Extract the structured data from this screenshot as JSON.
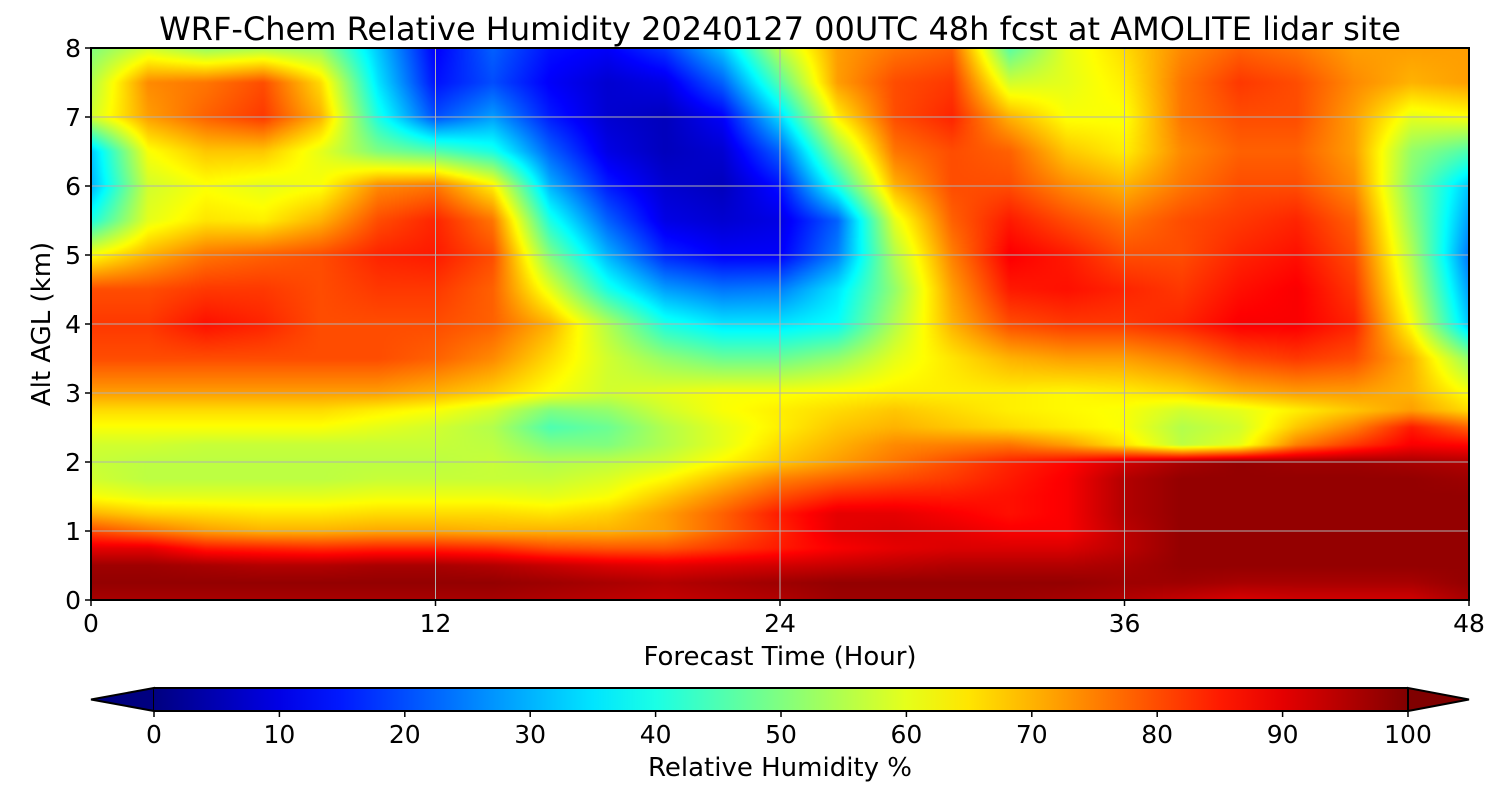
{
  "chart_data": {
    "type": "heatmap",
    "title": "WRF-Chem Relative Humidity 20240127 00UTC 48h fcst at AMOLITE lidar site",
    "xlabel": "Forecast Time (Hour)",
    "ylabel": "Alt AGL (km)",
    "xlim": [
      0,
      48
    ],
    "ylim": [
      0,
      8
    ],
    "x_ticks": [
      "0",
      "12",
      "24",
      "36",
      "48"
    ],
    "y_ticks": [
      "0",
      "1",
      "2",
      "3",
      "4",
      "5",
      "6",
      "7",
      "8"
    ],
    "grid": true,
    "colormap": "jet",
    "colorbar": {
      "label": "Relative Humidity %",
      "min": 0,
      "max": 100,
      "ticks": [
        "0",
        "10",
        "20",
        "30",
        "40",
        "50",
        "60",
        "70",
        "80",
        "90",
        "100"
      ],
      "extend": "both",
      "placement": "bottom"
    },
    "x": [
      0,
      2,
      4,
      6,
      8,
      10,
      12,
      14,
      16,
      18,
      20,
      22,
      24,
      26,
      28,
      30,
      32,
      34,
      36,
      38,
      40,
      42,
      44,
      46,
      48
    ],
    "y": [
      0,
      0.25,
      0.5,
      0.75,
      1,
      1.25,
      1.5,
      1.75,
      2,
      2.25,
      2.5,
      2.75,
      3,
      3.5,
      4,
      4.5,
      5,
      5.5,
      6,
      6.5,
      7,
      7.5,
      8
    ],
    "values": [
      [
        96,
        96,
        96,
        96,
        96,
        96,
        96,
        96,
        95,
        94,
        93,
        94,
        95,
        97,
        97,
        97,
        97,
        96,
        95,
        93,
        91,
        92,
        92,
        92,
        96
      ],
      [
        98,
        98,
        98,
        98,
        98,
        98,
        98,
        98,
        97,
        96,
        95,
        96,
        97,
        98,
        98,
        98,
        98,
        98,
        97,
        97,
        96,
        96,
        96,
        96,
        98
      ],
      [
        97,
        97,
        96,
        95,
        95,
        96,
        96,
        95,
        93,
        91,
        90,
        91,
        92,
        93,
        94,
        95,
        95,
        95,
        96,
        98,
        98,
        98,
        98,
        98,
        98
      ],
      [
        90,
        90,
        85,
        84,
        83,
        84,
        84,
        83,
        80,
        79,
        79,
        82,
        85,
        88,
        90,
        91,
        91,
        91,
        94,
        98,
        98,
        98,
        98,
        98,
        98
      ],
      [
        80,
        76,
        72,
        70,
        70,
        71,
        71,
        70,
        70,
        70,
        72,
        78,
        84,
        90,
        91,
        90,
        88,
        88,
        94,
        98,
        98,
        98,
        98,
        98,
        98
      ],
      [
        70,
        67,
        66,
        65,
        65,
        66,
        66,
        66,
        65,
        67,
        72,
        78,
        85,
        90,
        90,
        88,
        86,
        88,
        95,
        98,
        98,
        98,
        98,
        98,
        98
      ],
      [
        62,
        60,
        60,
        60,
        60,
        61,
        61,
        61,
        60,
        62,
        68,
        74,
        80,
        84,
        85,
        85,
        86,
        88,
        95,
        98,
        98,
        98,
        98,
        98,
        98
      ],
      [
        58,
        56,
        56,
        56,
        56,
        57,
        57,
        57,
        57,
        59,
        63,
        69,
        75,
        78,
        80,
        82,
        85,
        88,
        95,
        98,
        98,
        98,
        98,
        98,
        97
      ],
      [
        57,
        56,
        56,
        56,
        56,
        56,
        56,
        57,
        55,
        56,
        58,
        63,
        68,
        72,
        76,
        80,
        84,
        87,
        92,
        96,
        98,
        97,
        97,
        96,
        95
      ],
      [
        58,
        58,
        57,
        57,
        57,
        57,
        57,
        56,
        50,
        50,
        55,
        60,
        66,
        70,
        74,
        75,
        76,
        72,
        65,
        56,
        60,
        75,
        82,
        88,
        87
      ],
      [
        62,
        62,
        62,
        62,
        62,
        60,
        58,
        55,
        45,
        48,
        55,
        60,
        64,
        68,
        70,
        68,
        66,
        64,
        62,
        55,
        58,
        68,
        75,
        85,
        78
      ],
      [
        66,
        66,
        66,
        66,
        66,
        64,
        62,
        58,
        50,
        52,
        58,
        62,
        64,
        66,
        68,
        66,
        64,
        63,
        62,
        58,
        60,
        64,
        68,
        72,
        66
      ],
      [
        72,
        72,
        72,
        72,
        72,
        72,
        70,
        67,
        62,
        58,
        60,
        62,
        62,
        63,
        64,
        64,
        64,
        63,
        64,
        66,
        70,
        72,
        72,
        70,
        62
      ],
      [
        80,
        80,
        80,
        80,
        80,
        80,
        78,
        74,
        66,
        58,
        52,
        48,
        48,
        52,
        60,
        65,
        70,
        72,
        72,
        75,
        80,
        82,
        80,
        70,
        52
      ],
      [
        82,
        82,
        86,
        84,
        80,
        80,
        80,
        78,
        70,
        55,
        40,
        35,
        35,
        38,
        55,
        70,
        80,
        82,
        82,
        84,
        88,
        88,
        84,
        62,
        32
      ],
      [
        80,
        80,
        82,
        82,
        80,
        82,
        82,
        78,
        60,
        40,
        28,
        24,
        25,
        35,
        52,
        72,
        85,
        86,
        84,
        82,
        86,
        88,
        82,
        58,
        28
      ],
      [
        62,
        70,
        76,
        78,
        80,
        84,
        85,
        80,
        50,
        30,
        16,
        12,
        12,
        25,
        55,
        75,
        88,
        85,
        80,
        80,
        84,
        86,
        80,
        55,
        24
      ],
      [
        40,
        60,
        65,
        64,
        70,
        80,
        84,
        76,
        40,
        22,
        10,
        8,
        10,
        22,
        60,
        78,
        85,
        80,
        76,
        80,
        82,
        84,
        78,
        52,
        28
      ],
      [
        30,
        58,
        62,
        60,
        62,
        74,
        76,
        64,
        30,
        15,
        8,
        6,
        14,
        40,
        70,
        80,
        80,
        74,
        70,
        76,
        80,
        80,
        74,
        50,
        32
      ],
      [
        32,
        62,
        68,
        68,
        60,
        50,
        46,
        40,
        22,
        10,
        6,
        8,
        22,
        52,
        76,
        80,
        78,
        68,
        64,
        74,
        78,
        78,
        72,
        52,
        45
      ],
      [
        58,
        72,
        78,
        82,
        70,
        40,
        20,
        28,
        15,
        8,
        6,
        12,
        34,
        64,
        80,
        84,
        70,
        62,
        62,
        76,
        80,
        80,
        72,
        60,
        62
      ],
      [
        55,
        74,
        76,
        80,
        66,
        35,
        14,
        20,
        12,
        8,
        10,
        22,
        46,
        72,
        80,
        82,
        58,
        60,
        64,
        76,
        82,
        80,
        74,
        70,
        72
      ],
      [
        50,
        58,
        52,
        54,
        52,
        32,
        12,
        22,
        14,
        12,
        18,
        32,
        56,
        72,
        76,
        78,
        46,
        60,
        66,
        74,
        78,
        76,
        72,
        72,
        72
      ]
    ]
  }
}
